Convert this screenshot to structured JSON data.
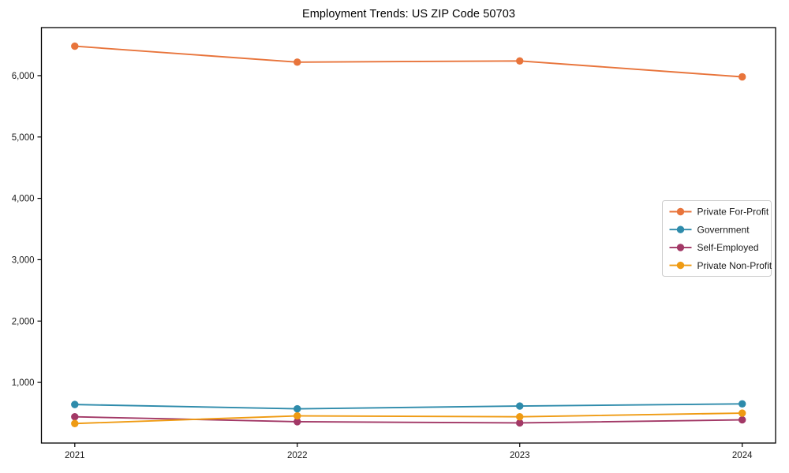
{
  "figure": {
    "title": "Employment Trends: US ZIP Code 50703"
  },
  "chart_data": {
    "type": "line",
    "title": "Employment Trends: US ZIP Code 50703",
    "xlabel": "",
    "ylabel": "",
    "x": [
      2021,
      2022,
      2023,
      2024
    ],
    "x_tick_labels": [
      "2021",
      "2022",
      "2023",
      "2024"
    ],
    "series": [
      {
        "name": "Private For-Profit",
        "color": "#e8743b",
        "values": [
          6480,
          6220,
          6240,
          5980
        ]
      },
      {
        "name": "Government",
        "color": "#2e8bab",
        "values": [
          640,
          570,
          615,
          650
        ]
      },
      {
        "name": "Self-Employed",
        "color": "#a23866",
        "values": [
          440,
          360,
          340,
          390
        ]
      },
      {
        "name": "Private Non-Profit",
        "color": "#ef9b13",
        "values": [
          330,
          455,
          440,
          500
        ]
      }
    ],
    "xlim": [
      2020.85,
      2024.15
    ],
    "ylim": [
      12,
      6783
    ],
    "yticks": [
      1000,
      2000,
      3000,
      4000,
      5000,
      6000
    ],
    "ytick_labels": [
      "1,000",
      "2,000",
      "3,000",
      "4,000",
      "5,000",
      "6,000"
    ],
    "grid": false,
    "legend_position": "center-right",
    "marker": "circle",
    "axis_color": "#000000"
  }
}
